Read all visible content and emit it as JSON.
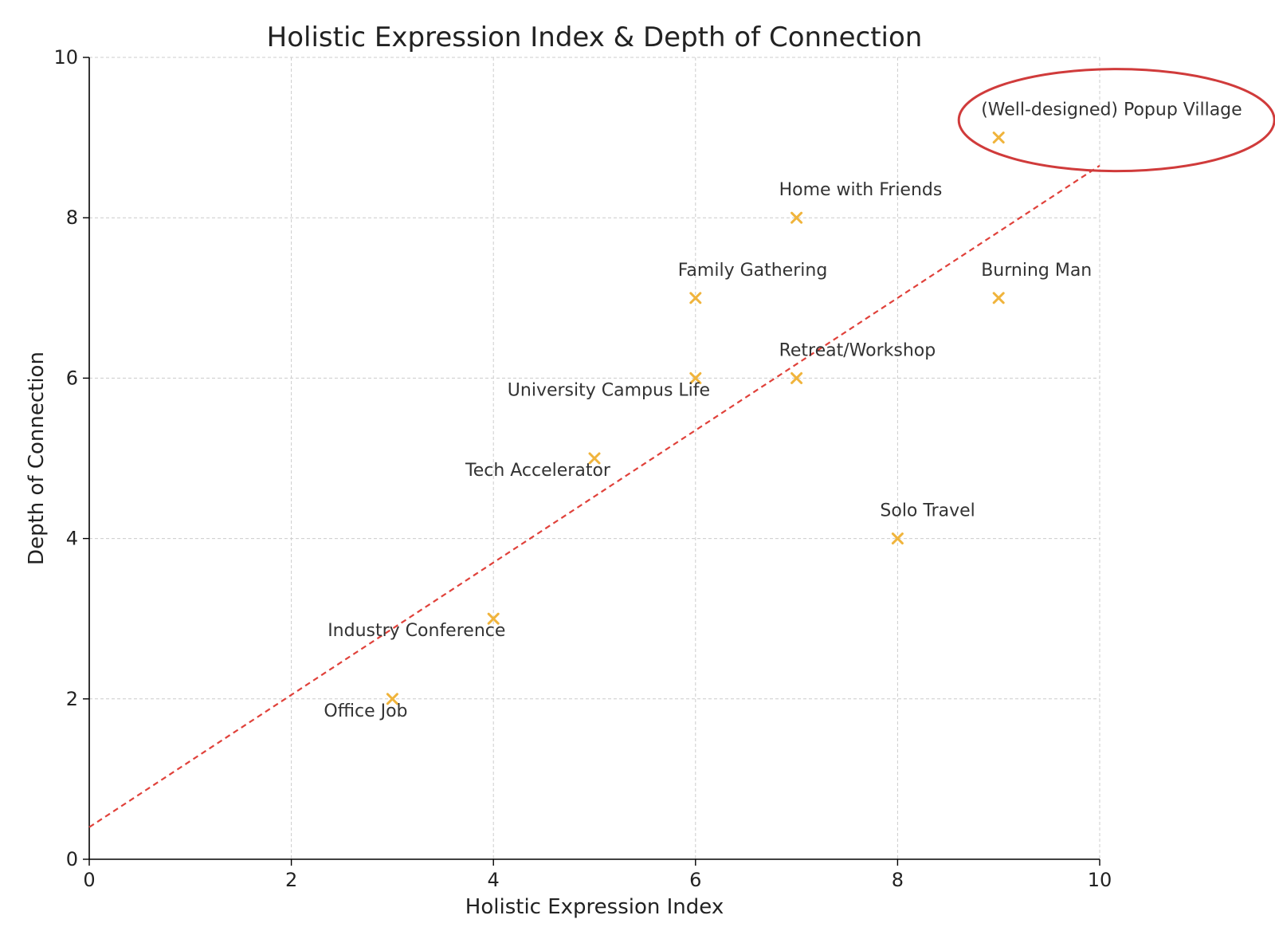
{
  "chart_data": {
    "type": "scatter",
    "title": "Holistic Expression Index & Depth of Connection",
    "xlabel": "Holistic Expression Index",
    "ylabel": "Depth of Connection",
    "xlim": [
      0,
      10
    ],
    "ylim": [
      0,
      10
    ],
    "xticks": [
      0,
      2,
      4,
      6,
      8,
      10
    ],
    "yticks": [
      0,
      2,
      4,
      6,
      8,
      10
    ],
    "grid": true,
    "marker": "x",
    "marker_color": "#f0b43c",
    "points": [
      {
        "label": "(Well-designed) Popup Village",
        "x": 9,
        "y": 9,
        "highlighted": true
      },
      {
        "label": "Home with Friends",
        "x": 7,
        "y": 8
      },
      {
        "label": "Family Gathering",
        "x": 6,
        "y": 7
      },
      {
        "label": "Burning Man",
        "x": 9,
        "y": 7
      },
      {
        "label": "Retreat/Workshop",
        "x": 7,
        "y": 6
      },
      {
        "label": "University Campus Life",
        "x": 6,
        "y": 6
      },
      {
        "label": "Tech Accelerator",
        "x": 5,
        "y": 5
      },
      {
        "label": "Solo Travel",
        "x": 8,
        "y": 4
      },
      {
        "label": "Industry Conference",
        "x": 4,
        "y": 3
      },
      {
        "label": "Office Job",
        "x": 3,
        "y": 2
      }
    ],
    "trendline": {
      "style": "dashed",
      "color": "#e0413a",
      "x": [
        0,
        10
      ],
      "y": [
        0.4,
        8.65
      ]
    },
    "highlight_color": "#d03b3b"
  }
}
